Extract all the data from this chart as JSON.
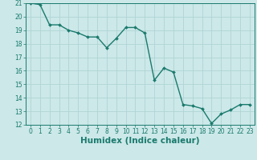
{
  "x": [
    0,
    1,
    2,
    3,
    4,
    5,
    6,
    7,
    8,
    9,
    10,
    11,
    12,
    13,
    14,
    15,
    16,
    17,
    18,
    19,
    20,
    21,
    22,
    23
  ],
  "y": [
    21.0,
    20.9,
    19.4,
    19.4,
    19.0,
    18.8,
    18.5,
    18.5,
    17.7,
    18.4,
    19.2,
    19.2,
    18.8,
    15.3,
    16.2,
    15.9,
    13.5,
    13.4,
    13.2,
    12.1,
    12.8,
    13.1,
    13.5,
    13.5
  ],
  "line_color": "#1a7a6e",
  "marker": "D",
  "marker_size": 2.0,
  "background_color": "#cce8e8",
  "grid_color": "#b0d4d4",
  "xlabel": "Humidex (Indice chaleur)",
  "xlim": [
    -0.5,
    23.5
  ],
  "ylim": [
    12,
    21
  ],
  "yticks": [
    12,
    13,
    14,
    15,
    16,
    17,
    18,
    19,
    20,
    21
  ],
  "xticks": [
    0,
    1,
    2,
    3,
    4,
    5,
    6,
    7,
    8,
    9,
    10,
    11,
    12,
    13,
    14,
    15,
    16,
    17,
    18,
    19,
    20,
    21,
    22,
    23
  ],
  "tick_label_fontsize": 5.5,
  "xlabel_fontsize": 7.5,
  "line_width": 1.0
}
